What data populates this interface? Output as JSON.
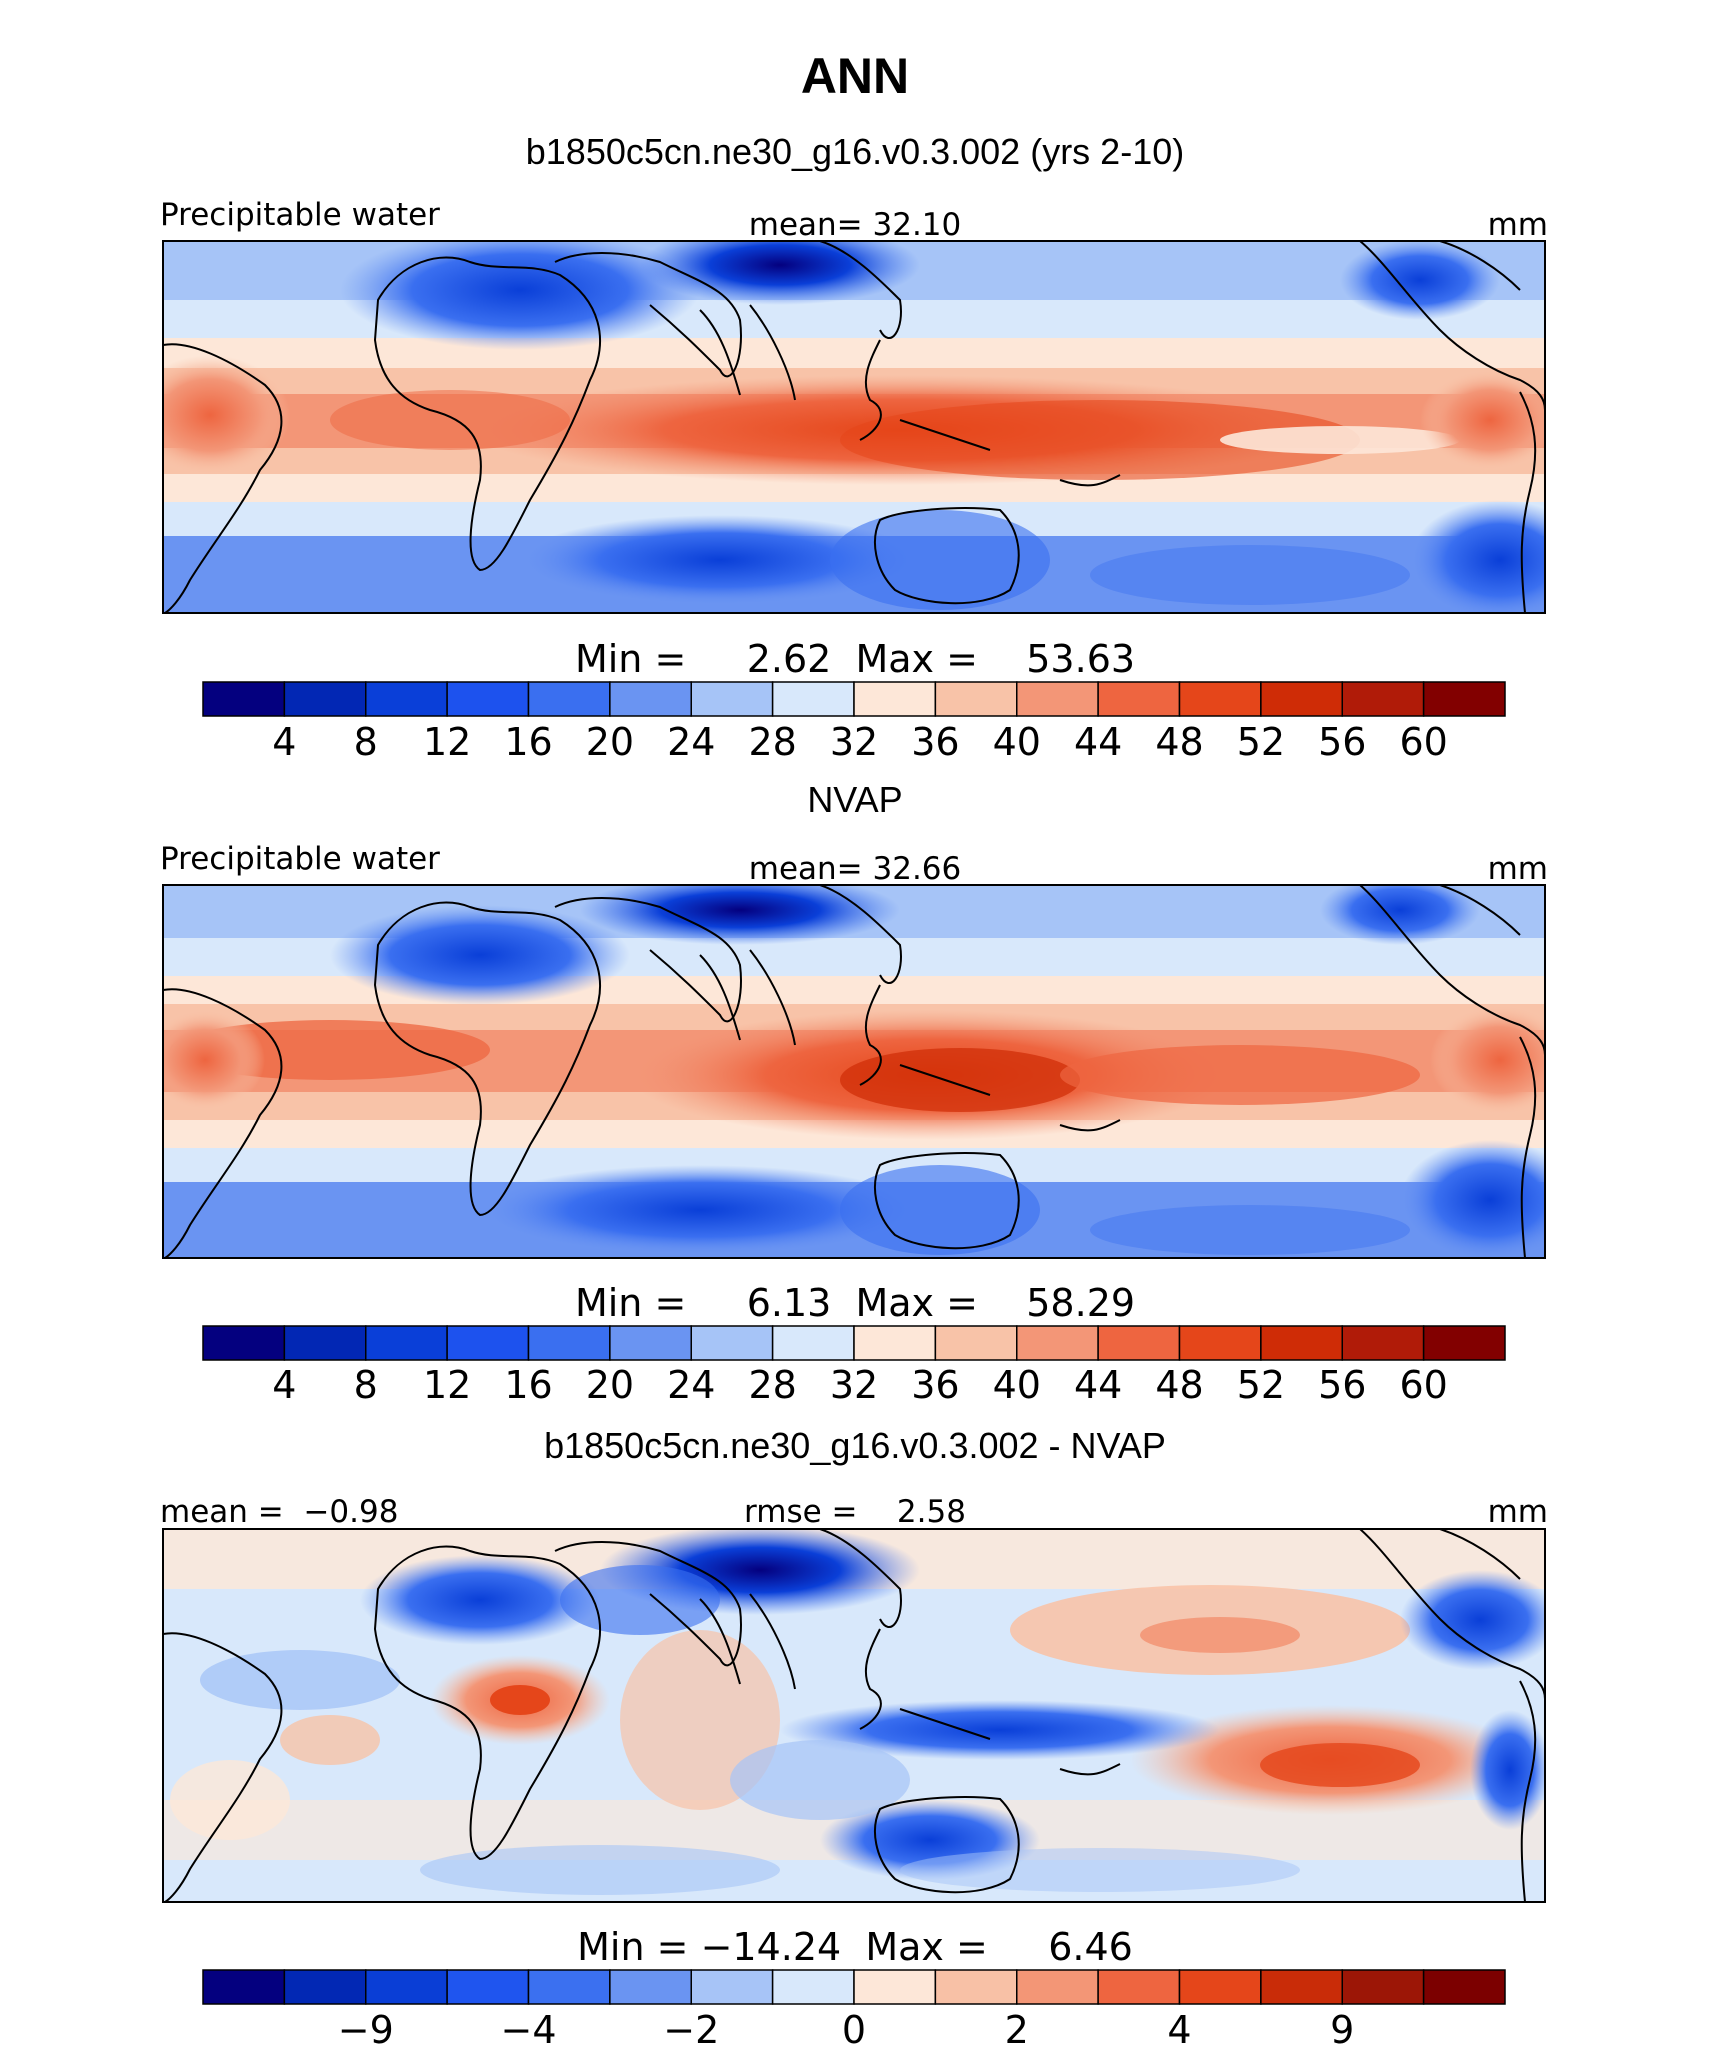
{
  "figure": {
    "title": "ANN",
    "colors": {
      "sequential": [
        "#04007f",
        "#0227b4",
        "#0a3fd8",
        "#1d52ee",
        "#3a6ff0",
        "#6a94f2",
        "#a6c4f7",
        "#d8e8fb",
        "#fde7d8",
        "#f8c3a8",
        "#f39677",
        "#ee6540",
        "#e5461a",
        "#cf2c06",
        "#b01b08",
        "#820000"
      ],
      "diverging": [
        "#04007f",
        "#0228b4",
        "#0a3ed6",
        "#1f55ef",
        "#3b70f0",
        "#6a94f2",
        "#a7c4f7",
        "#d8e8fb",
        "#fde7d8",
        "#f8c1a6",
        "#f39676",
        "#ee6540",
        "#e5461a",
        "#c92c08",
        "#9c1606",
        "#7c0000"
      ],
      "land_outline": "#000000"
    }
  },
  "panels": [
    {
      "subtitle": "b1850c5cn.ne30_g16.v0.3.002 (yrs 2-10)",
      "left_label": "Precipitable water",
      "center_label": "mean=   32.10",
      "right_label": "mm",
      "minmax_label": "Min =     2.62  Max =    53.63",
      "colorbar_ticks": [
        "4",
        "8",
        "12",
        "16",
        "20",
        "24",
        "28",
        "32",
        "36",
        "40",
        "44",
        "48",
        "52",
        "56",
        "60"
      ]
    },
    {
      "subtitle": "NVAP",
      "left_label": "Precipitable water",
      "center_label": "mean=   32.66",
      "right_label": "mm",
      "minmax_label": "Min =     6.13  Max =    58.29",
      "colorbar_ticks": [
        "4",
        "8",
        "12",
        "16",
        "20",
        "24",
        "28",
        "32",
        "36",
        "40",
        "44",
        "48",
        "52",
        "56",
        "60"
      ]
    },
    {
      "subtitle": "b1850c5cn.ne30_g16.v0.3.002 - NVAP",
      "left_label": "mean =  −0.98",
      "center_label": "rmse =    2.58",
      "right_label": "mm",
      "minmax_label": "Min = −14.24  Max =     6.46",
      "colorbar_ticks": [
        "−9",
        "−4",
        "−2",
        "0",
        "2",
        "4",
        "9"
      ]
    }
  ],
  "chart_data": [
    {
      "type": "heatmap",
      "field": "Precipitable water",
      "units": "mm",
      "mean": 32.1,
      "min": 2.62,
      "max": 53.63,
      "contour_levels": [
        4,
        8,
        12,
        16,
        20,
        24,
        28,
        32,
        36,
        40,
        44,
        48,
        52,
        56,
        60
      ],
      "legend": "bottom"
    },
    {
      "type": "heatmap",
      "field": "Precipitable water",
      "units": "mm",
      "mean": 32.66,
      "min": 6.13,
      "max": 58.29,
      "contour_levels": [
        4,
        8,
        12,
        16,
        20,
        24,
        28,
        32,
        36,
        40,
        44,
        48,
        52,
        56,
        60
      ],
      "legend": "bottom"
    },
    {
      "type": "heatmap",
      "field": "difference",
      "units": "mm",
      "mean": -0.98,
      "rmse": 2.58,
      "min": -14.24,
      "max": 6.46,
      "contour_levels": [
        -9,
        -6,
        -4,
        -3,
        -2,
        -1,
        0,
        1,
        2,
        3,
        4,
        6,
        9
      ],
      "legend": "bottom"
    }
  ]
}
